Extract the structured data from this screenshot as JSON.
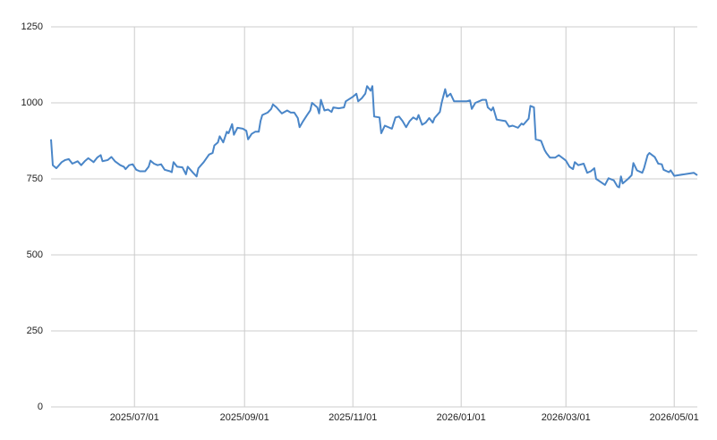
{
  "chart_data": {
    "type": "line",
    "x": [
      "2025/05/15",
      "2025/05/16",
      "2025/05/18",
      "2025/05/21",
      "2025/05/23",
      "2025/05/25",
      "2025/05/27",
      "2025/05/30",
      "2025/06/01",
      "2025/06/03",
      "2025/06/05",
      "2025/06/08",
      "2025/06/10",
      "2025/06/12",
      "2025/06/13",
      "2025/06/16",
      "2025/06/18",
      "2025/06/20",
      "2025/06/23",
      "2025/06/25",
      "2025/06/26",
      "2025/06/28",
      "2025/06/30",
      "2025/07/02",
      "2025/07/04",
      "2025/07/07",
      "2025/07/09",
      "2025/07/10",
      "2025/07/12",
      "2025/07/14",
      "2025/07/16",
      "2025/07/18",
      "2025/07/21",
      "2025/07/22",
      "2025/07/23",
      "2025/07/25",
      "2025/07/28",
      "2025/07/30",
      "2025/07/31",
      "2025/08/03",
      "2025/08/05",
      "2025/08/06",
      "2025/08/09",
      "2025/08/12",
      "2025/08/14",
      "2025/08/15",
      "2025/08/17",
      "2025/08/18",
      "2025/08/20",
      "2025/08/22",
      "2025/08/23",
      "2025/08/25",
      "2025/08/26",
      "2025/08/28",
      "2025/08/31",
      "2025/09/02",
      "2025/09/03",
      "2025/09/05",
      "2025/09/07",
      "2025/09/09",
      "2025/09/10",
      "2025/09/11",
      "2025/09/14",
      "2025/09/16",
      "2025/09/17",
      "2025/09/19",
      "2025/09/22",
      "2025/09/25",
      "2025/09/27",
      "2025/09/29",
      "2025/10/01",
      "2025/10/02",
      "2025/10/04",
      "2025/10/06",
      "2025/10/08",
      "2025/10/09",
      "2025/10/12",
      "2025/10/13",
      "2025/10/14",
      "2025/10/16",
      "2025/10/18",
      "2025/10/20",
      "2025/10/21",
      "2025/10/24",
      "2025/10/27",
      "2025/10/28",
      "2025/11/01",
      "2025/11/03",
      "2025/11/04",
      "2025/11/06",
      "2025/11/08",
      "2025/11/09",
      "2025/11/11",
      "2025/11/12",
      "2025/11/13",
      "2025/11/16",
      "2025/11/17",
      "2025/11/19",
      "2025/11/23",
      "2025/11/25",
      "2025/11/27",
      "2025/11/29",
      "2025/12/01",
      "2025/12/03",
      "2025/12/05",
      "2025/12/07",
      "2025/12/08",
      "2025/12/10",
      "2025/12/12",
      "2025/12/14",
      "2025/12/16",
      "2025/12/17",
      "2025/12/20",
      "2025/12/21",
      "2025/12/23",
      "2025/12/24",
      "2025/12/26",
      "2025/12/28",
      "2025/12/31",
      "2026/01/04",
      "2026/01/06",
      "2026/01/07",
      "2026/01/09",
      "2026/01/11",
      "2026/01/13",
      "2026/01/15",
      "2026/01/16",
      "2026/01/18",
      "2026/01/19",
      "2026/01/21",
      "2026/01/24",
      "2026/01/26",
      "2026/01/28",
      "2026/01/30",
      "2026/02/02",
      "2026/02/04",
      "2026/02/05",
      "2026/02/08",
      "2026/02/09",
      "2026/02/11",
      "2026/02/12",
      "2026/02/15",
      "2026/02/17",
      "2026/02/18",
      "2026/02/20",
      "2026/02/23",
      "2026/02/25",
      "2026/03/01",
      "2026/03/03",
      "2026/03/05",
      "2026/03/06",
      "2026/03/08",
      "2026/03/11",
      "2026/03/13",
      "2026/03/15",
      "2026/03/17",
      "2026/03/18",
      "2026/03/21",
      "2026/03/23",
      "2026/03/25",
      "2026/03/28",
      "2026/03/30",
      "2026/03/31",
      "2026/04/01",
      "2026/04/02",
      "2026/04/05",
      "2026/04/07",
      "2026/04/08",
      "2026/04/10",
      "2026/04/13",
      "2026/04/14",
      "2026/04/16",
      "2026/04/17",
      "2026/04/20",
      "2026/04/22",
      "2026/04/24",
      "2026/04/25",
      "2026/04/28",
      "2026/04/29",
      "2026/05/01",
      "2026/05/12",
      "2026/05/14"
    ],
    "series": [
      {
        "color": "#4a86c8",
        "values": [
          880,
          795,
          785,
          805,
          812,
          815,
          800,
          808,
          795,
          808,
          818,
          805,
          820,
          828,
          808,
          812,
          822,
          808,
          795,
          790,
          782,
          795,
          798,
          780,
          775,
          775,
          790,
          810,
          800,
          795,
          798,
          780,
          775,
          772,
          805,
          790,
          788,
          765,
          790,
          770,
          758,
          785,
          805,
          830,
          835,
          860,
          870,
          890,
          870,
          905,
          900,
          930,
          895,
          918,
          915,
          908,
          880,
          898,
          905,
          905,
          940,
          960,
          968,
          980,
          995,
          985,
          965,
          975,
          968,
          968,
          950,
          920,
          940,
          958,
          975,
          1000,
          985,
          965,
          1010,
          975,
          978,
          970,
          985,
          982,
          985,
          1005,
          1020,
          1030,
          1005,
          1015,
          1030,
          1055,
          1040,
          1055,
          955,
          952,
          900,
          925,
          915,
          952,
          955,
          940,
          920,
          940,
          952,
          945,
          960,
          928,
          935,
          950,
          935,
          950,
          970,
          1000,
          1045,
          1020,
          1030,
          1005,
          1005,
          1005,
          1008,
          980,
          1000,
          1005,
          1010,
          1010,
          985,
          975,
          985,
          945,
          942,
          940,
          922,
          925,
          918,
          932,
          928,
          948,
          990,
          985,
          880,
          875,
          845,
          835,
          820,
          820,
          828,
          810,
          790,
          782,
          805,
          795,
          800,
          770,
          775,
          785,
          750,
          738,
          730,
          752,
          745,
          725,
          722,
          758,
          735,
          750,
          762,
          802,
          778,
          770,
          785,
          828,
          835,
          822,
          800,
          798,
          780,
          772,
          778,
          760,
          770,
          762
        ]
      }
    ],
    "xlim": [
      "2025/05/15",
      "2026/05/14"
    ],
    "xticks": [
      "2025/07/01",
      "2025/09/01",
      "2025/11/01",
      "2026/01/01",
      "2026/03/01",
      "2026/05/01"
    ],
    "ylim": [
      0,
      1250
    ],
    "yticks": [
      0,
      250,
      500,
      750,
      1000,
      1250
    ],
    "grid": true
  }
}
